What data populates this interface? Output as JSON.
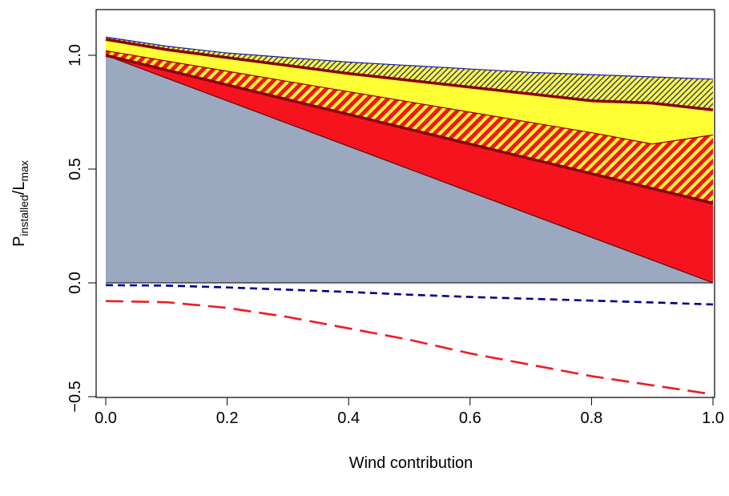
{
  "chart_data": {
    "type": "area",
    "xlabel": "Wind contribution",
    "ylabel": {
      "main": "P",
      "sub1": "installed",
      "sep": "/L",
      "sub2": "max"
    },
    "xlim": [
      0,
      1
    ],
    "ylim": [
      -0.5,
      1.2
    ],
    "xticks": [
      0,
      0.2,
      0.4,
      0.6,
      0.8,
      1
    ],
    "xtick_labels": [
      "0.0",
      "0.2",
      "0.4",
      "0.6",
      "0.8",
      "1.0"
    ],
    "yticks": [
      -0.5,
      0,
      0.5,
      1
    ],
    "ytick_labels": [
      "−0.5",
      "0.0",
      "0.5",
      "1.0"
    ],
    "grid": false,
    "x": [
      0,
      0.1,
      0.2,
      0.3,
      0.4,
      0.5,
      0.6,
      0.7,
      0.8,
      0.9,
      1.0
    ],
    "series": [
      {
        "values": [
          1.0,
          0.9,
          0.8,
          0.7,
          0.6,
          0.5,
          0.4,
          0.3,
          0.2,
          0.1,
          0.0
        ],
        "color": "#9aa8c0",
        "style": "fill"
      },
      {
        "values": [
          1.0,
          0.935,
          0.87,
          0.805,
          0.74,
          0.675,
          0.61,
          0.545,
          0.48,
          0.415,
          0.35
        ],
        "color": "#f5141e",
        "style": "fill"
      },
      {
        "values": [
          1.02,
          0.975,
          0.93,
          0.885,
          0.84,
          0.795,
          0.75,
          0.705,
          0.66,
          0.61,
          0.65
        ],
        "color": "#f5141e",
        "style": "hatch-red-yellow"
      },
      {
        "values": [
          1.07,
          1.025,
          0.99,
          0.955,
          0.92,
          0.89,
          0.86,
          0.83,
          0.8,
          0.79,
          0.76
        ],
        "color": "#ffff33",
        "style": "fill"
      },
      {
        "values": [
          1.08,
          1.04,
          1.01,
          0.99,
          0.97,
          0.955,
          0.94,
          0.925,
          0.915,
          0.905,
          0.895
        ],
        "color": "#ffff33",
        "style": "hatch-yellow-blue"
      },
      {
        "values": [
          -0.01,
          -0.012,
          -0.02,
          -0.03,
          -0.04,
          -0.052,
          -0.062,
          -0.07,
          -0.078,
          -0.086,
          -0.095
        ],
        "color": "#00008b",
        "style": "dashed"
      },
      {
        "values": [
          -0.08,
          -0.085,
          -0.11,
          -0.15,
          -0.2,
          -0.25,
          -0.31,
          -0.36,
          -0.41,
          -0.45,
          -0.49
        ],
        "color": "#ee1c25",
        "style": "longdash"
      }
    ],
    "boundary_color": "#8b0000"
  }
}
